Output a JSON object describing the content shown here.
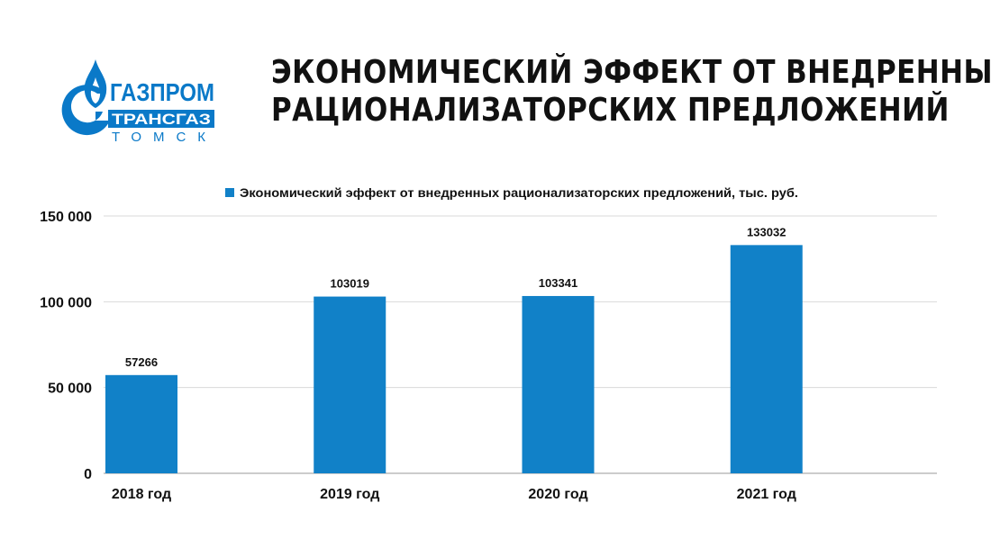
{
  "logo": {
    "name": "ГАЗПРОМ",
    "line2": "ТРАНСГАЗ",
    "line3": "ТОМСК",
    "color": "#0a79c8"
  },
  "title": {
    "line1": "ЭКОНОМИЧЕСКИЙ ЭФФЕКТ ОТ ВНЕДРЕННЫХ",
    "line2": "РАЦИОНАЛИЗАТОРСКИХ ПРЕДЛОЖЕНИЙ"
  },
  "chart_data": {
    "type": "bar",
    "categories": [
      "2018 год",
      "2019 год",
      "2020 год",
      "2021 год"
    ],
    "series": [
      {
        "name": "Экономический эффект от внедренных рационализаторских предложений, тыс. руб.",
        "values": [
          57266,
          103019,
          103341,
          133032
        ],
        "color": "#1181c8"
      }
    ],
    "ylim": [
      0,
      150000
    ],
    "yticks": [
      0,
      50000,
      100000,
      150000
    ],
    "ytick_labels": [
      "0",
      "50 000",
      "100 000",
      "150 000"
    ],
    "data_labels": [
      "57266",
      "103019",
      "103341",
      "133032"
    ],
    "grid": true,
    "legend_position": "top-center"
  }
}
